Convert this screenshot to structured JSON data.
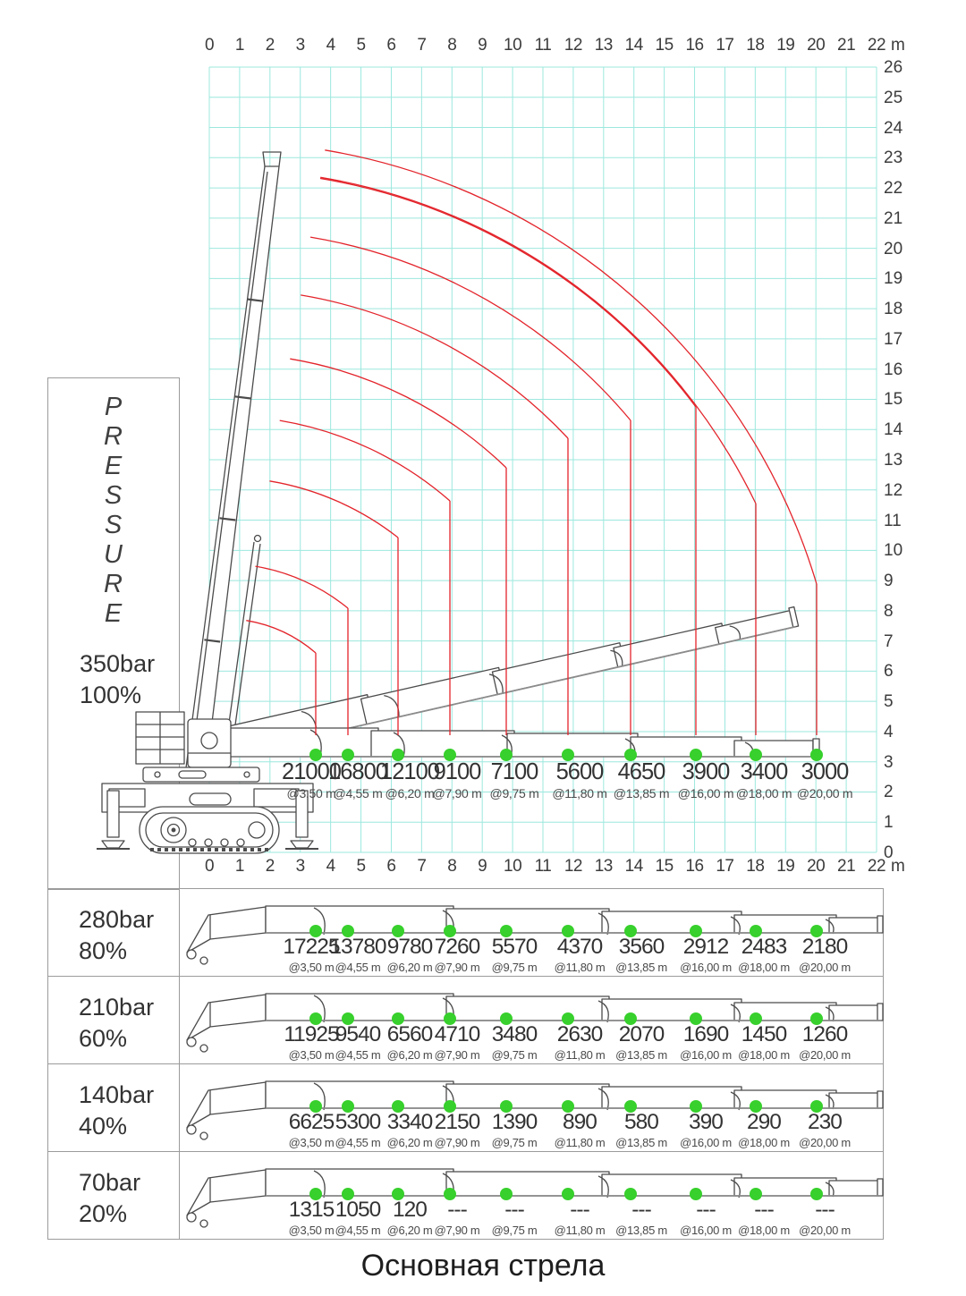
{
  "title": "Основная стрела",
  "pressure_panel": {
    "label": "P\nR\nE\nS\nS\nU\nR\nE"
  },
  "axis": {
    "unit": "m",
    "x_ticks": [
      "0",
      "1",
      "2",
      "3",
      "4",
      "5",
      "6",
      "7",
      "8",
      "9",
      "10",
      "11",
      "12",
      "13",
      "14",
      "15",
      "16",
      "17",
      "18",
      "19",
      "20",
      "21",
      "22"
    ],
    "y_ticks": [
      "26",
      "25",
      "24",
      "23",
      "22",
      "21",
      "20",
      "19",
      "18",
      "17",
      "16",
      "15",
      "14",
      "13",
      "12",
      "11",
      "10",
      "9",
      "8",
      "7",
      "6",
      "5",
      "4",
      "3",
      "2",
      "1",
      "0"
    ]
  },
  "radii": [
    "@3,50 m",
    "@4,55 m",
    "@6,20 m",
    "@7,90 m",
    "@9,75 m",
    "@11,80 m",
    "@13,85 m",
    "@16,00 m",
    "@18,00 m",
    "@20,00 m"
  ],
  "series": [
    {
      "pressure": "350bar",
      "percent": "100%",
      "values": [
        "21000",
        "16800",
        "12100",
        "9100",
        "7100",
        "5600",
        "4650",
        "3900",
        "3400",
        "3000"
      ]
    },
    {
      "pressure": "280bar",
      "percent": "80%",
      "values": [
        "17225",
        "13780",
        "9780",
        "7260",
        "5570",
        "4370",
        "3560",
        "2912",
        "2483",
        "2180"
      ]
    },
    {
      "pressure": "210bar",
      "percent": "60%",
      "values": [
        "11925",
        "9540",
        "6560",
        "4710",
        "3480",
        "2630",
        "2070",
        "1690",
        "1450",
        "1260"
      ]
    },
    {
      "pressure": "140bar",
      "percent": "40%",
      "values": [
        "6625",
        "5300",
        "3340",
        "2150",
        "1390",
        "890",
        "580",
        "390",
        "290",
        "230"
      ]
    },
    {
      "pressure": "70bar",
      "percent": "20%",
      "values": [
        "1315",
        "1050",
        "120",
        "---",
        "---",
        "---",
        "---",
        "---",
        "---",
        "---"
      ]
    }
  ],
  "colors": {
    "grid": "#9ce8de",
    "curve": "#e3242b",
    "dot": "#37d02c",
    "ink": "#3c3c3c",
    "line_art": "#4b4b4b",
    "border": "#9b9b9b"
  },
  "chart_data": {
    "type": "table",
    "title": "Основная стрела",
    "x_axis": {
      "unit": "m",
      "range": [
        0,
        22
      ],
      "grid": true
    },
    "y_axis": {
      "unit": "m",
      "range": [
        0,
        26
      ],
      "grid": true
    },
    "radii_m": [
      3.5,
      4.55,
      6.2,
      7.9,
      9.75,
      11.8,
      13.85,
      16.0,
      18.0,
      20.0
    ],
    "series": [
      {
        "name": "350bar 100%",
        "load_kg": [
          21000,
          16800,
          12100,
          9100,
          7100,
          5600,
          4650,
          3900,
          3400,
          3000
        ]
      },
      {
        "name": "280bar 80%",
        "load_kg": [
          17225,
          13780,
          9780,
          7260,
          5570,
          4370,
          3560,
          2912,
          2483,
          2180
        ]
      },
      {
        "name": "210bar 60%",
        "load_kg": [
          11925,
          9540,
          6560,
          4710,
          3480,
          2630,
          2070,
          1690,
          1450,
          1260
        ]
      },
      {
        "name": "140bar 40%",
        "load_kg": [
          6625,
          5300,
          3340,
          2150,
          1390,
          890,
          580,
          390,
          290,
          230
        ]
      },
      {
        "name": "70bar 20%",
        "load_kg": [
          1315,
          1050,
          120,
          null,
          null,
          null,
          null,
          null,
          null,
          null
        ]
      }
    ]
  }
}
